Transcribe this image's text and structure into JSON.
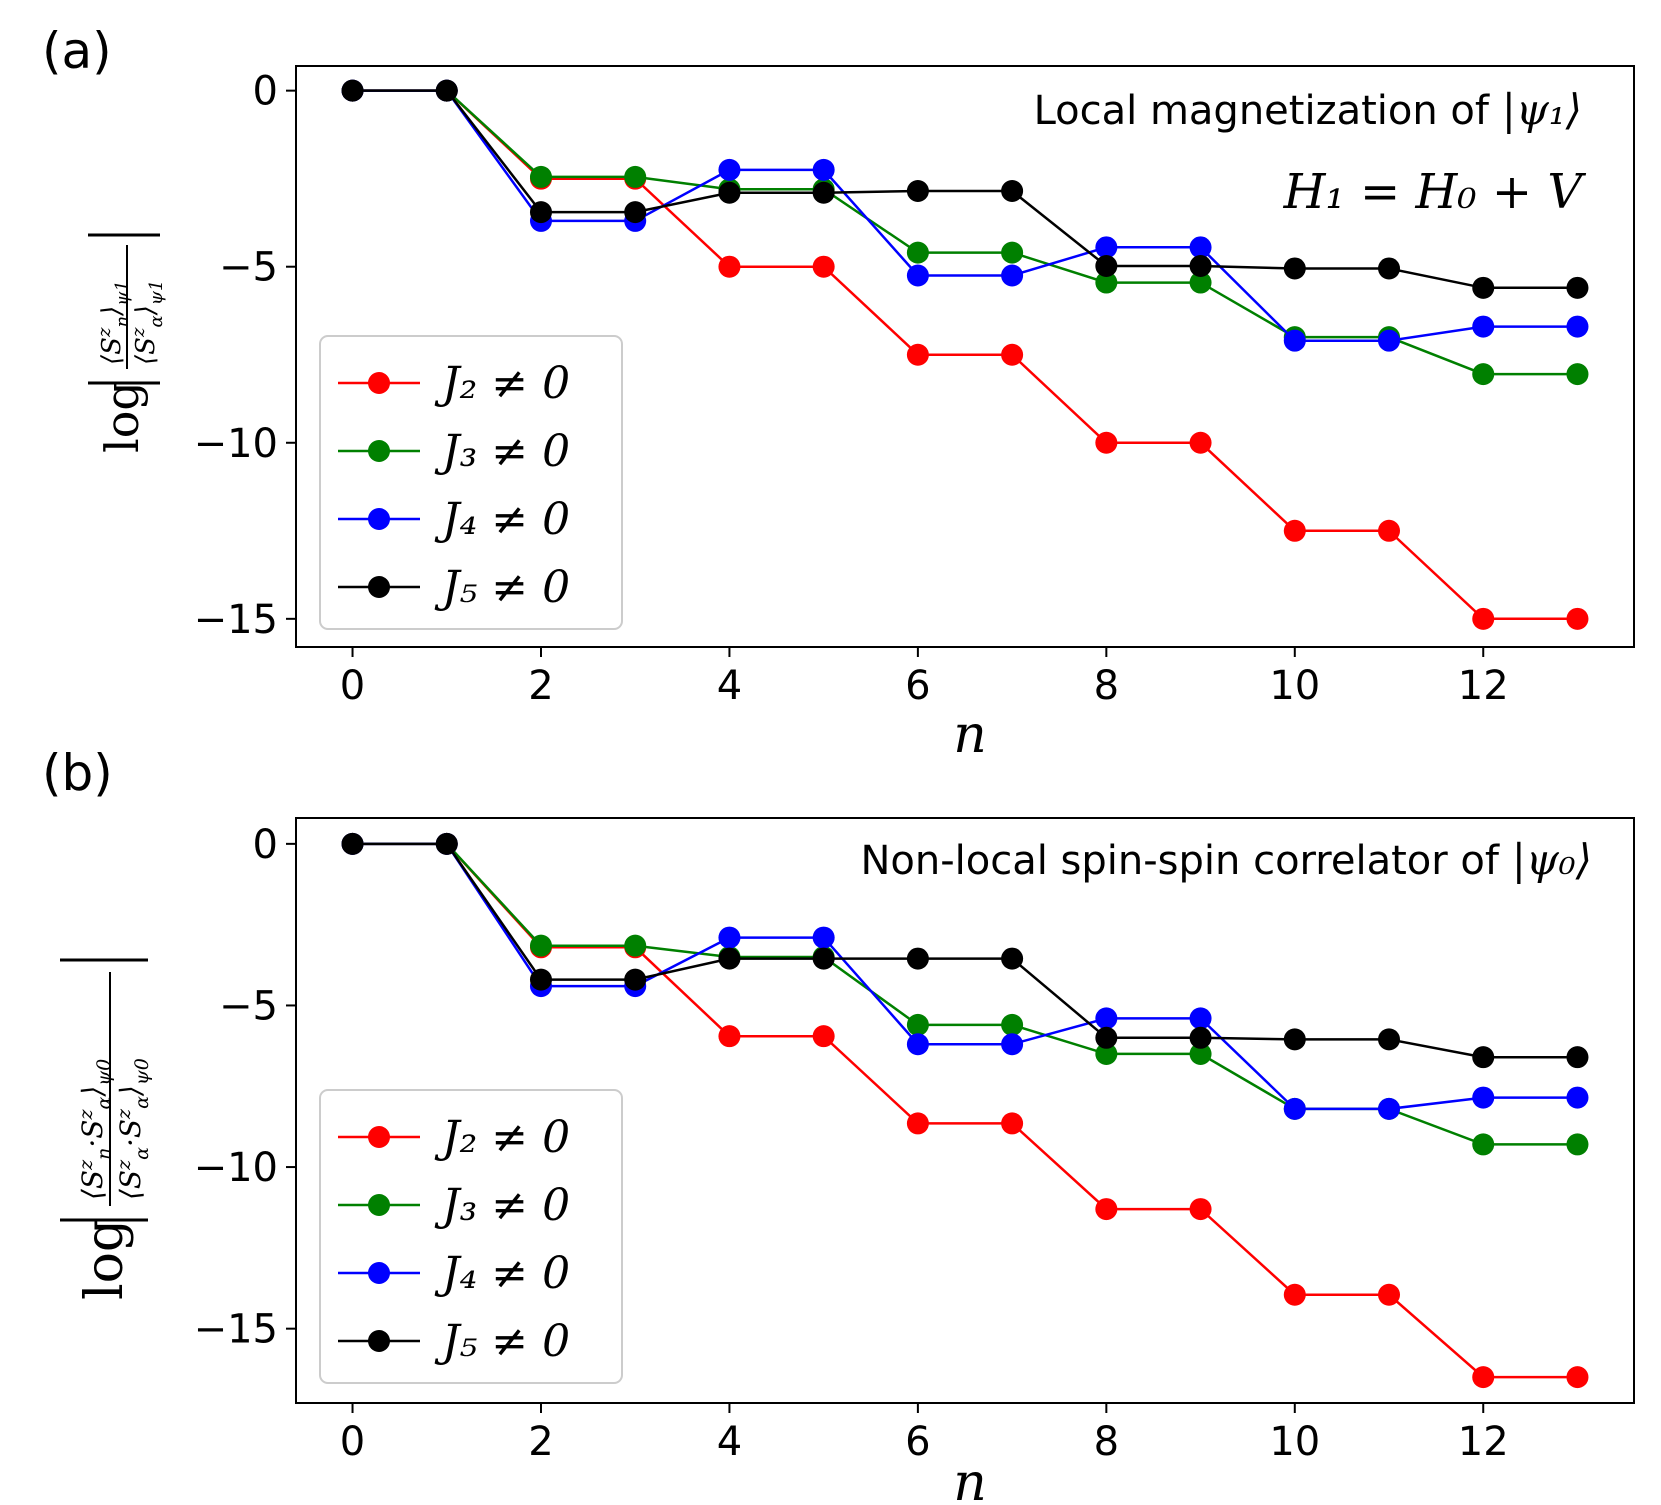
{
  "chart_data": [
    {
      "type": "line",
      "panel_label": "(a)",
      "annotation_text": "Local magnetization of ",
      "annotation_math": "|ψ₁⟩",
      "annotation_equation": "H₁ = H₀ + V",
      "xlabel": "n",
      "ylabel": "log |⟨S^z_n⟩_ψ1 / ⟨S^z_α⟩_ψ1|",
      "xlim": [
        -0.6,
        13.6
      ],
      "ylim": [
        -15.8,
        0.7
      ],
      "xticks": [
        0,
        2,
        4,
        6,
        8,
        10,
        12
      ],
      "yticks": [
        0,
        -5,
        -10,
        -15
      ],
      "ytick_labels": [
        "0",
        "−5",
        "−10",
        "−15"
      ],
      "legend_position": "center-left",
      "x": [
        0,
        1,
        2,
        3,
        4,
        5,
        6,
        7,
        8,
        9,
        10,
        11,
        12,
        13
      ],
      "series": [
        {
          "name": "J₂ ≠ 0",
          "color": "#ff0000",
          "values": [
            0,
            0,
            -2.5,
            -2.5,
            -5.0,
            -5.0,
            -7.5,
            -7.5,
            -10.0,
            -10.0,
            -12.5,
            -12.5,
            -15.0,
            -15.0
          ]
        },
        {
          "name": "J₃ ≠ 0",
          "color": "#008000",
          "values": [
            0,
            0,
            -2.45,
            -2.45,
            -2.8,
            -2.8,
            -4.6,
            -4.6,
            -5.45,
            -5.45,
            -7.0,
            -7.0,
            -8.05,
            -8.05
          ]
        },
        {
          "name": "J₄ ≠ 0",
          "color": "#0000ff",
          "values": [
            0,
            0,
            -3.7,
            -3.7,
            -2.25,
            -2.25,
            -5.25,
            -5.25,
            -4.45,
            -4.45,
            -7.1,
            -7.1,
            -6.7,
            -6.7
          ]
        },
        {
          "name": "J₅ ≠ 0",
          "color": "#000000",
          "values": [
            0,
            0,
            -3.45,
            -3.45,
            -2.9,
            -2.9,
            -2.85,
            -2.85,
            -4.98,
            -4.98,
            -5.05,
            -5.05,
            -5.6,
            -5.6
          ]
        }
      ]
    },
    {
      "type": "line",
      "panel_label": "(b)",
      "annotation_text": "Non-local spin-spin correlator of ",
      "annotation_math": "|ψ₀⟩",
      "xlabel": "n",
      "ylabel": "log |⟨S^z_n·S^z_α⟩_ψ0 / ⟨S^z_α·S^z_α⟩_ψ0|",
      "xlim": [
        -0.6,
        13.6
      ],
      "ylim": [
        -17.3,
        0.8
      ],
      "xticks": [
        0,
        2,
        4,
        6,
        8,
        10,
        12
      ],
      "yticks": [
        0,
        -5,
        -10,
        -15
      ],
      "ytick_labels": [
        "0",
        "−5",
        "−10",
        "−15"
      ],
      "legend_position": "lower-left",
      "x": [
        0,
        1,
        2,
        3,
        4,
        5,
        6,
        7,
        8,
        9,
        10,
        11,
        12,
        13
      ],
      "series": [
        {
          "name": "J₂ ≠ 0",
          "color": "#ff0000",
          "values": [
            0,
            0,
            -3.2,
            -3.2,
            -5.95,
            -5.95,
            -8.65,
            -8.65,
            -11.3,
            -11.3,
            -13.95,
            -13.95,
            -16.5,
            -16.5
          ]
        },
        {
          "name": "J₃ ≠ 0",
          "color": "#008000",
          "values": [
            0,
            0,
            -3.15,
            -3.15,
            -3.5,
            -3.5,
            -5.6,
            -5.6,
            -6.5,
            -6.5,
            -8.2,
            -8.2,
            -9.3,
            -9.3
          ]
        },
        {
          "name": "J₄ ≠ 0",
          "color": "#0000ff",
          "values": [
            0,
            0,
            -4.4,
            -4.4,
            -2.9,
            -2.9,
            -6.2,
            -6.2,
            -5.4,
            -5.4,
            -8.2,
            -8.2,
            -7.85,
            -7.85
          ]
        },
        {
          "name": "J₅ ≠ 0",
          "color": "#000000",
          "values": [
            0,
            0,
            -4.2,
            -4.2,
            -3.55,
            -3.55,
            -3.55,
            -3.55,
            -6.0,
            -6.0,
            -6.05,
            -6.05,
            -6.6,
            -6.6
          ]
        }
      ]
    }
  ]
}
